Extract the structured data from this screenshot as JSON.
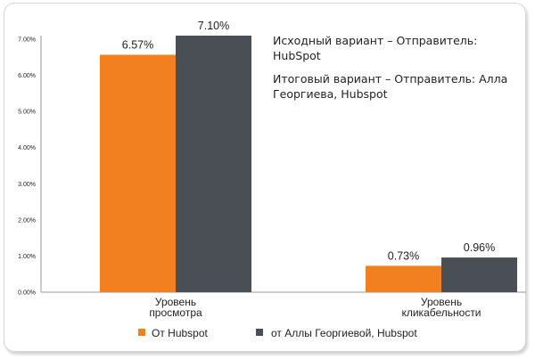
{
  "chart_data": {
    "type": "bar",
    "categories": [
      [
        "Уровень",
        "просмотра"
      ],
      [
        "Уровень",
        "кликабельности"
      ]
    ],
    "series": [
      {
        "name": "От Hubspot",
        "values": [
          6.57,
          0.73
        ],
        "color": "#f28020"
      },
      {
        "name": "от Аллы Георгиевой, Hubspot",
        "values": [
          7.1,
          0.96
        ],
        "color": "#4a4f55"
      }
    ],
    "data_labels": [
      [
        "6.57%",
        "0.73%"
      ],
      [
        "7.10%",
        "0.96%"
      ]
    ],
    "y_ticks": [
      "0.00%",
      "1.00%",
      "2.00%",
      "3.00%",
      "4.00%",
      "5.00%",
      "6.00%",
      "7.00%"
    ],
    "ylim": [
      0,
      7.1
    ],
    "grid": false,
    "legend_position": "bottom"
  },
  "annotations": {
    "original": "Исходный вариант – Отправитель: HubSpot",
    "final": "Итоговый вариант – Отправитель: Алла Георгиева, Hubspot"
  }
}
